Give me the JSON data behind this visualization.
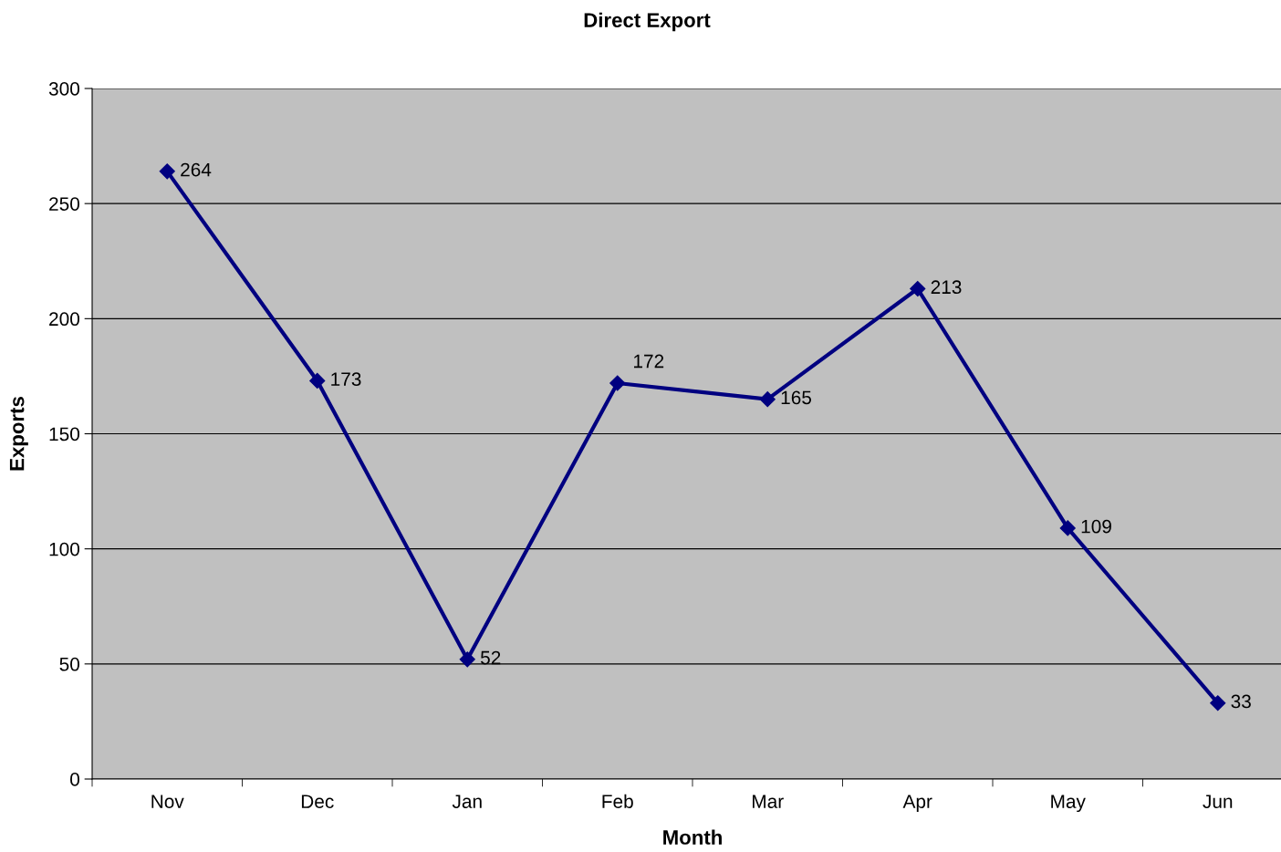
{
  "chart_data": {
    "type": "line",
    "title": "Direct Export",
    "xlabel": "Month",
    "ylabel": "Exports",
    "categories": [
      "Nov",
      "Dec",
      "Jan",
      "Feb",
      "Mar",
      "Apr",
      "May",
      "Jun"
    ],
    "series": [
      {
        "color": "#000080",
        "values": [
          264,
          173,
          52,
          172,
          165,
          213,
          109,
          33
        ]
      }
    ],
    "ylim": [
      0,
      300
    ],
    "yticks": [
      0,
      50,
      100,
      150,
      200,
      250,
      300
    ],
    "grid": "y",
    "marker": "diamond",
    "line_style": "solid",
    "data_labels": true
  }
}
